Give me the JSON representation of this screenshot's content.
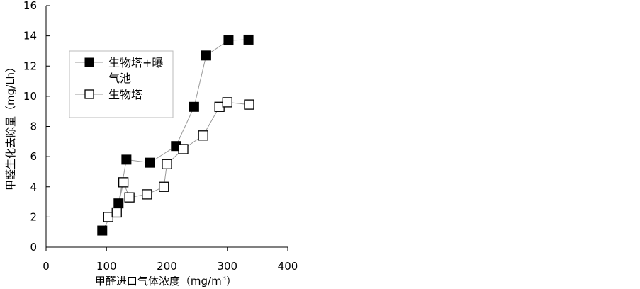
{
  "chart_data": {
    "type": "scatter",
    "xlabel": "甲醛进口气体浓度（mg/m",
    "xlabel_sup": "3",
    "xlabel_end": "）",
    "ylabel": "甲醛生化去除量（mg/Lh）",
    "xlim": [
      0,
      400
    ],
    "ylim": [
      0,
      16
    ],
    "xticks": [
      0,
      100,
      200,
      300,
      400
    ],
    "yticks": [
      0,
      2,
      4,
      6,
      8,
      10,
      12,
      14,
      16
    ],
    "grid": false,
    "legend_position": "top-left",
    "series": [
      {
        "name": "生物塔+曝气池",
        "legend_lines": [
          "生物塔+曝",
          "气池"
        ],
        "marker": "filled-square",
        "color": "#000000",
        "points": [
          [
            93,
            1.1
          ],
          [
            120,
            2.9
          ],
          [
            133,
            5.8
          ],
          [
            172,
            5.6
          ],
          [
            215,
            6.7
          ],
          [
            245,
            9.3
          ],
          [
            265,
            12.7
          ],
          [
            302,
            13.7
          ],
          [
            335,
            13.75
          ]
        ]
      },
      {
        "name": "生物塔",
        "legend_lines": [
          "生物塔"
        ],
        "marker": "open-square",
        "color": "#000000",
        "points": [
          [
            103,
            2.0
          ],
          [
            117,
            2.3
          ],
          [
            128,
            4.3
          ],
          [
            138,
            3.3
          ],
          [
            167,
            3.5
          ],
          [
            195,
            4.0
          ],
          [
            200,
            5.5
          ],
          [
            227,
            6.5
          ],
          [
            260,
            7.4
          ],
          [
            287,
            9.3
          ],
          [
            300,
            9.6
          ],
          [
            336,
            9.45
          ]
        ]
      }
    ]
  }
}
